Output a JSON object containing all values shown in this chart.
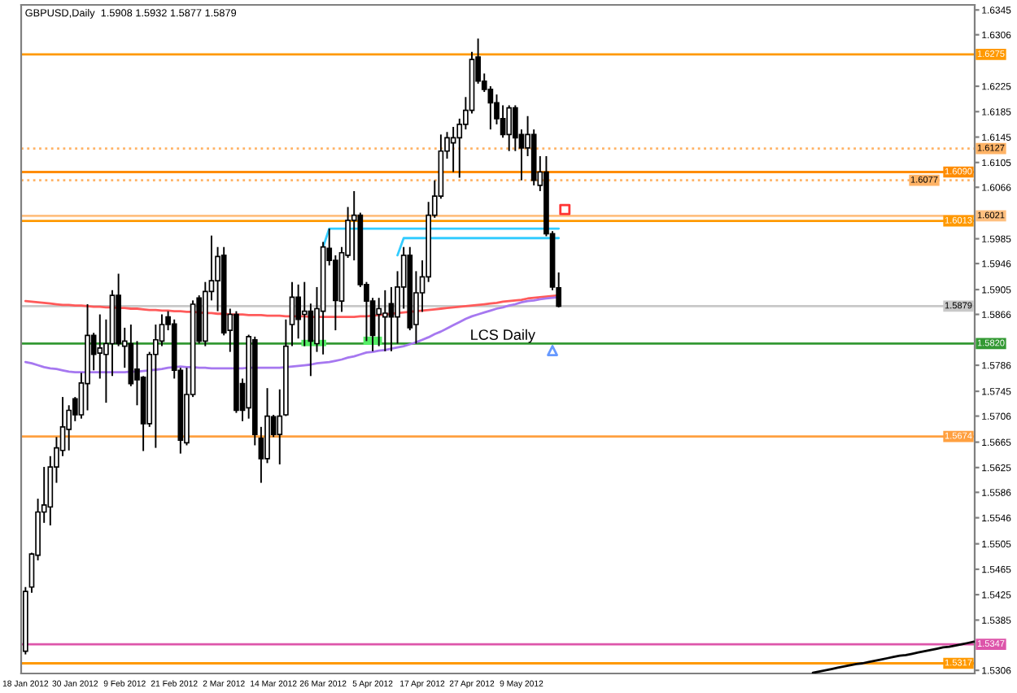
{
  "chart_data": {
    "type": "candlestick",
    "title": "GBPUSD,Daily  1.5908 1.5932 1.5877 1.5879",
    "color": "#000000",
    "categories": [
      "18 Jan 2012",
      null,
      null,
      null,
      null,
      null,
      null,
      null,
      "30 Jan 2012",
      null,
      null,
      null,
      null,
      null,
      null,
      null,
      "9 Feb 2012",
      null,
      null,
      null,
      null,
      null,
      null,
      null,
      "21 Feb 2012",
      null,
      null,
      null,
      null,
      null,
      null,
      null,
      "2 Mar 2012",
      null,
      null,
      null,
      null,
      null,
      null,
      null,
      "14 Mar 2012",
      null,
      null,
      null,
      null,
      null,
      null,
      null,
      "26 Mar 2012",
      null,
      null,
      null,
      null,
      null,
      null,
      null,
      "5 Apr 2012",
      null,
      null,
      null,
      null,
      null,
      null,
      null,
      "17 Apr 2012",
      null,
      null,
      null,
      null,
      null,
      null,
      null,
      "27 Apr 2012",
      null,
      null,
      null,
      null,
      null,
      null,
      null,
      "9 May 2012",
      null,
      null,
      null,
      null,
      null,
      null,
      null,
      null,
      null,
      null,
      null,
      null,
      null,
      null,
      null,
      null,
      null,
      null,
      null,
      null,
      null,
      null,
      null,
      null,
      null,
      null,
      null,
      null,
      null,
      null,
      null,
      null,
      null,
      null,
      null,
      null,
      null,
      null,
      null,
      null,
      null,
      null,
      null,
      null,
      null,
      null,
      null,
      null,
      null,
      null,
      null,
      null,
      null,
      null,
      null,
      null,
      null,
      null,
      null,
      null,
      null,
      null,
      null,
      null,
      null,
      null,
      null,
      null,
      null,
      null,
      null,
      null,
      null
    ],
    "ohlc": [
      [
        1.5336,
        1.5437,
        1.5331,
        1.543
      ],
      [
        1.5437,
        1.5491,
        1.5428,
        1.5489
      ],
      [
        1.5487,
        1.5576,
        1.5479,
        1.5555
      ],
      [
        1.5555,
        1.5626,
        1.5538,
        1.5566
      ],
      [
        1.5563,
        1.5643,
        1.5534,
        1.5626
      ],
      [
        1.5626,
        1.5673,
        1.5601,
        1.5656
      ],
      [
        1.5652,
        1.5736,
        1.5643,
        1.5689
      ],
      [
        1.5685,
        1.5723,
        1.5652,
        1.5715
      ],
      [
        1.5733,
        1.5736,
        1.5698,
        1.5708
      ],
      [
        1.5708,
        1.5774,
        1.5702,
        1.5758
      ],
      [
        1.5757,
        1.5882,
        1.5715,
        1.5833
      ],
      [
        1.5833,
        1.5837,
        1.5778,
        1.5803
      ],
      [
        1.5805,
        1.5866,
        1.5765,
        1.5813
      ],
      [
        1.5803,
        1.5858,
        1.5727,
        1.582
      ],
      [
        1.582,
        1.5904,
        1.5769,
        1.5896
      ],
      [
        1.5896,
        1.593,
        1.5816,
        1.582
      ],
      [
        1.5816,
        1.5845,
        1.5782,
        1.5824
      ],
      [
        1.582,
        1.585,
        1.5753,
        1.5757
      ],
      [
        1.578,
        1.5824,
        1.5723,
        1.5763
      ],
      [
        1.5767,
        1.5769,
        1.5651,
        1.5694
      ],
      [
        1.5694,
        1.5807,
        1.5689,
        1.5803
      ],
      [
        1.5803,
        1.585,
        1.5656,
        1.5826
      ],
      [
        1.5824,
        1.5866,
        1.5816,
        1.585
      ],
      [
        1.5862,
        1.5871,
        1.5841,
        1.585
      ],
      [
        1.5851,
        1.5858,
        1.5765,
        1.5778
      ],
      [
        1.5778,
        1.5782,
        1.5647,
        1.5668
      ],
      [
        1.5664,
        1.5782,
        1.566,
        1.574
      ],
      [
        1.574,
        1.5888,
        1.5736,
        1.5882
      ],
      [
        1.5892,
        1.5896,
        1.582,
        1.5824
      ],
      [
        1.5824,
        1.5917,
        1.5816,
        1.5902
      ],
      [
        1.5902,
        1.599,
        1.5888,
        1.5919
      ],
      [
        1.5919,
        1.5972,
        1.5871,
        1.5957
      ],
      [
        1.5959,
        1.5972,
        1.5833,
        1.5837
      ],
      [
        1.5841,
        1.5875,
        1.5807,
        1.5866
      ],
      [
        1.5866,
        1.5871,
        1.5711,
        1.5715
      ],
      [
        1.5757,
        1.5765,
        1.5698,
        1.5715
      ],
      [
        1.5719,
        1.5834,
        1.5702,
        1.5831
      ],
      [
        1.5826,
        1.5831,
        1.566,
        1.5677
      ],
      [
        1.5671,
        1.5689,
        1.5601,
        1.5639
      ],
      [
        1.5639,
        1.575,
        1.5632,
        1.5706
      ],
      [
        1.5705,
        1.5708,
        1.5673,
        1.5677
      ],
      [
        1.5677,
        1.5748,
        1.563,
        1.5706
      ],
      [
        1.5708,
        1.5858,
        1.5706,
        1.5816
      ],
      [
        1.585,
        1.5917,
        1.5816,
        1.5893
      ],
      [
        1.5893,
        1.5913,
        1.5828,
        1.5858
      ],
      [
        1.5866,
        1.5917,
        1.5816,
        1.5871
      ],
      [
        1.5871,
        1.5883,
        1.5769,
        1.5824
      ],
      [
        1.582,
        1.5909,
        1.5807,
        1.5875
      ],
      [
        1.5871,
        1.598,
        1.5803,
        1.5972
      ],
      [
        1.597,
        1.6001,
        1.5943,
        1.5951
      ],
      [
        1.5951,
        1.5959,
        1.5841,
        1.5888
      ],
      [
        1.5887,
        1.5972,
        1.587,
        1.5963
      ],
      [
        1.5959,
        1.6035,
        1.5955,
        1.6014
      ],
      [
        1.6014,
        1.606,
        1.5951,
        1.6022
      ],
      [
        1.6022,
        1.6026,
        1.5909,
        1.5913
      ],
      [
        1.5913,
        1.5917,
        1.5824,
        1.5887
      ],
      [
        1.5887,
        1.5892,
        1.5808,
        1.5833
      ],
      [
        1.5866,
        1.5892,
        1.5816,
        1.5875
      ],
      [
        1.5862,
        1.5904,
        1.5808,
        1.5868
      ],
      [
        1.5883,
        1.5909,
        1.5808,
        1.5862
      ],
      [
        1.5862,
        1.5934,
        1.582,
        1.5909
      ],
      [
        1.5909,
        1.5972,
        1.5875,
        1.5959
      ],
      [
        1.5959,
        1.5972,
        1.5841,
        1.5845
      ],
      [
        1.585,
        1.5934,
        1.582,
        1.59
      ],
      [
        1.59,
        1.5951,
        1.587,
        1.5925
      ],
      [
        1.5925,
        1.6043,
        1.5917,
        1.6022
      ],
      [
        1.6022,
        1.6077,
        1.6018,
        1.6052
      ],
      [
        1.6052,
        1.6149,
        1.6048,
        1.6123
      ],
      [
        1.6123,
        1.6153,
        1.6111,
        1.6144
      ],
      [
        1.6136,
        1.6161,
        1.609,
        1.6144
      ],
      [
        1.6144,
        1.6174,
        1.6081,
        1.6165
      ],
      [
        1.6165,
        1.6208,
        1.6157,
        1.6187
      ],
      [
        1.6187,
        1.6279,
        1.6182,
        1.6267
      ],
      [
        1.6271,
        1.63,
        1.6229,
        1.6233
      ],
      [
        1.6233,
        1.6245,
        1.6216,
        1.622
      ],
      [
        1.622,
        1.6225,
        1.6157,
        1.6199
      ],
      [
        1.6199,
        1.6212,
        1.6165,
        1.6174
      ],
      [
        1.6174,
        1.6195,
        1.6144,
        1.6149
      ],
      [
        1.6149,
        1.6195,
        1.6123,
        1.6191
      ],
      [
        1.6191,
        1.6195,
        1.6123,
        1.6144
      ],
      [
        1.6149,
        1.6157,
        1.6077,
        1.6128
      ],
      [
        1.6128,
        1.6178,
        1.6115,
        1.6149
      ],
      [
        1.6149,
        1.6157,
        1.6069,
        1.6077
      ],
      [
        1.6069,
        1.6115,
        1.606,
        1.609
      ],
      [
        1.609,
        1.6115,
        1.5989,
        1.5993
      ],
      [
        1.5993,
        1.5997,
        1.5904,
        1.5909
      ],
      [
        1.5908,
        1.5932,
        1.5877,
        1.5879
      ],
      null,
      null,
      null,
      null,
      null,
      null,
      null,
      null,
      null,
      null,
      null,
      null,
      null,
      null,
      null,
      null,
      null,
      null,
      null,
      null,
      null,
      null,
      null,
      null,
      null,
      null,
      null,
      null,
      null,
      null,
      null,
      null,
      null,
      null,
      null,
      null,
      null,
      null,
      null,
      null,
      null,
      null,
      null,
      null,
      null,
      null,
      null,
      null,
      null,
      null,
      null,
      null,
      null,
      null,
      null,
      null,
      null,
      null,
      null,
      null,
      null,
      null,
      null,
      null,
      null,
      null,
      null
    ],
    "ylim": [
      1.5301,
      1.6353
    ],
    "yticks": [
      1.6345,
      1.6306,
      1.6225,
      1.6185,
      1.6145,
      1.6105,
      1.6066,
      1.5985,
      1.5946,
      1.5905,
      1.5866,
      1.5786,
      1.5745,
      1.5706,
      1.5665,
      1.5625,
      1.5586,
      1.5546,
      1.5505,
      1.5465,
      1.5425,
      1.5385,
      1.5306
    ],
    "series": [
      {
        "type": "line",
        "color": "#ff5a5a",
        "values": [
          1.5887,
          1.5886,
          1.5885,
          1.5884,
          1.5883,
          1.5882,
          1.5881,
          1.5881,
          1.588,
          1.588,
          1.5879,
          1.5878,
          1.5878,
          1.5877,
          1.5877,
          1.5876,
          1.5876,
          1.5875,
          1.5875,
          1.5874,
          1.5873,
          1.5873,
          1.5872,
          1.5872,
          1.5871,
          1.5871,
          1.587,
          1.587,
          1.5869,
          1.5868,
          1.5868,
          1.5867,
          1.5867,
          1.5866,
          1.5866,
          1.5866,
          1.5865,
          1.5865,
          1.5865,
          1.5864,
          1.5864,
          1.5864,
          1.5863,
          1.5863,
          1.5863,
          1.5863,
          1.5862,
          1.5862,
          1.5862,
          1.5862,
          1.5862,
          1.5862,
          1.5862,
          1.5862,
          1.5863,
          1.5863,
          1.5864,
          1.5865,
          1.5866,
          1.5867,
          1.5868,
          1.5869,
          1.587,
          1.5871,
          1.5872,
          1.5873,
          1.5874,
          1.5875,
          1.5876,
          1.5877,
          1.5878,
          1.5879,
          1.588,
          1.5881,
          1.5882,
          1.5883,
          1.5884,
          1.5886,
          1.5887,
          1.5888,
          1.5889,
          1.5891,
          1.5892,
          1.5893,
          1.5894,
          1.5895,
          1.5896,
          null,
          null,
          null,
          null,
          null,
          null,
          null,
          null,
          null,
          null,
          null,
          null,
          null,
          null,
          null,
          null,
          null,
          null,
          null,
          null,
          null,
          null,
          null,
          null,
          null,
          null,
          null,
          null,
          null,
          null,
          null,
          null,
          null,
          null,
          null,
          null,
          null,
          null,
          null,
          null,
          null,
          null,
          null,
          null,
          null,
          null,
          null,
          null,
          null,
          null,
          null,
          null,
          null,
          null,
          null,
          null,
          null,
          null,
          null,
          null,
          null,
          null,
          null,
          null,
          null,
          null,
          null
        ]
      },
      {
        "type": "line",
        "color": "#a678f0",
        "values": [
          1.5791,
          1.5789,
          1.5786,
          1.5783,
          1.5781,
          1.578,
          1.5778,
          1.5776,
          1.5775,
          1.5775,
          1.5775,
          1.5775,
          1.5775,
          1.5775,
          1.5775,
          1.5775,
          1.5775,
          1.5776,
          1.5776,
          1.5777,
          1.5778,
          1.5779,
          1.578,
          1.5782,
          1.5783,
          1.5784,
          1.5783,
          1.5783,
          1.5782,
          1.5782,
          1.5781,
          1.5781,
          1.5781,
          1.5781,
          1.5781,
          1.5781,
          1.5782,
          1.5782,
          1.5782,
          1.5782,
          1.5782,
          1.5782,
          1.5783,
          1.5784,
          1.5785,
          1.5786,
          1.5787,
          1.5789,
          1.579,
          1.5791,
          1.5793,
          1.5795,
          1.5798,
          1.58,
          1.5803,
          1.5806,
          1.5807,
          1.5809,
          1.581,
          1.5812,
          1.5814,
          1.5816,
          1.5819,
          1.5822,
          1.5826,
          1.583,
          1.5835,
          1.5839,
          1.5844,
          1.5849,
          1.5854,
          1.5859,
          1.5863,
          1.5866,
          1.5869,
          1.5872,
          1.5875,
          1.5877,
          1.588,
          1.5882,
          1.5885,
          1.5887,
          1.5888,
          1.589,
          1.5891,
          1.5892,
          1.5893,
          null,
          null,
          null,
          null,
          null,
          null,
          null,
          null,
          null,
          null,
          null,
          null,
          null,
          null,
          null,
          null,
          null,
          null,
          null,
          null,
          null,
          null,
          null,
          null,
          null,
          null,
          null,
          null,
          null,
          null,
          null,
          null,
          null,
          null,
          null,
          null,
          null,
          null,
          null,
          null,
          null,
          null,
          null,
          null,
          null,
          null,
          null,
          null,
          null,
          null,
          null,
          null,
          null,
          null,
          null,
          null,
          null,
          null,
          null,
          null,
          null,
          null,
          null,
          null,
          null,
          null,
          null
        ]
      },
      {
        "type": "line",
        "color": "#33ccff",
        "values": [
          null,
          null,
          null,
          null,
          null,
          null,
          null,
          null,
          null,
          null,
          null,
          null,
          null,
          null,
          null,
          null,
          null,
          null,
          null,
          null,
          null,
          null,
          null,
          null,
          null,
          null,
          null,
          null,
          null,
          null,
          null,
          null,
          null,
          null,
          null,
          null,
          null,
          null,
          null,
          null,
          null,
          null,
          null,
          null,
          null,
          null,
          null,
          null,
          1.5972,
          1.6001,
          1.6001,
          1.6001,
          1.6001,
          1.6001,
          1.6001,
          1.6001,
          1.6001,
          1.6001,
          1.6001,
          1.6001,
          1.6001,
          1.6001,
          1.6001,
          1.6001,
          1.6001,
          1.6001,
          1.6001,
          1.6001,
          1.6001,
          1.6001,
          1.6001,
          1.6001,
          1.6001,
          1.6001,
          1.6001,
          1.6001,
          1.6001,
          1.6001,
          1.6001,
          1.6001,
          1.6001,
          1.6001,
          1.6001,
          1.6001,
          1.6001,
          1.6001,
          1.6001,
          null,
          null,
          null,
          null,
          null,
          null,
          null,
          null,
          null,
          null,
          null,
          null,
          null,
          null,
          null,
          null,
          null,
          null,
          null,
          null,
          null,
          null,
          null,
          null,
          null,
          null,
          null,
          null,
          null,
          null,
          null,
          null,
          null,
          null,
          null,
          null,
          null,
          null,
          null,
          null,
          null,
          null,
          null,
          null,
          null,
          null,
          null,
          null,
          null,
          null,
          null,
          null,
          null,
          null,
          null,
          null,
          null,
          null,
          null,
          null,
          null,
          null,
          null,
          null,
          null,
          null,
          null
        ]
      },
      {
        "type": "line",
        "color": "#33ccff",
        "values": [
          null,
          null,
          null,
          null,
          null,
          null,
          null,
          null,
          null,
          null,
          null,
          null,
          null,
          null,
          null,
          null,
          null,
          null,
          null,
          null,
          null,
          null,
          null,
          null,
          null,
          null,
          null,
          null,
          null,
          null,
          null,
          null,
          null,
          null,
          null,
          null,
          null,
          null,
          null,
          null,
          null,
          null,
          null,
          null,
          null,
          null,
          null,
          null,
          null,
          null,
          null,
          null,
          null,
          null,
          null,
          null,
          null,
          null,
          null,
          null,
          1.5959,
          1.5986,
          1.5986,
          1.5986,
          1.5986,
          1.5986,
          1.5986,
          1.5986,
          1.5986,
          1.5986,
          1.5986,
          1.5986,
          1.5986,
          1.5986,
          1.5986,
          1.5986,
          1.5986,
          1.5986,
          1.5986,
          1.5986,
          1.5986,
          1.5986,
          1.5986,
          1.5986,
          1.5986,
          1.5986,
          1.5986,
          null,
          null,
          null,
          null,
          null,
          null,
          null,
          null,
          null,
          null,
          null,
          null,
          null,
          null,
          null,
          null,
          null,
          null,
          null,
          null,
          null,
          null,
          null,
          null,
          null,
          null,
          null,
          null,
          null,
          null,
          null,
          null,
          null,
          null,
          null,
          null,
          null,
          null,
          null,
          null,
          null,
          null,
          null,
          null,
          null,
          null,
          null,
          null,
          null,
          null,
          null,
          null,
          null,
          null,
          null,
          null,
          null,
          null,
          null,
          null,
          null,
          null,
          null,
          null,
          null,
          null,
          null
        ]
      },
      {
        "type": "line",
        "color": "#000000",
        "values": [
          null,
          null,
          null,
          null,
          null,
          null,
          null,
          null,
          null,
          null,
          null,
          null,
          null,
          null,
          null,
          null,
          null,
          null,
          null,
          null,
          null,
          null,
          null,
          null,
          null,
          null,
          null,
          null,
          null,
          null,
          null,
          null,
          null,
          null,
          null,
          null,
          null,
          null,
          null,
          null,
          null,
          null,
          null,
          null,
          null,
          null,
          null,
          null,
          null,
          null,
          null,
          null,
          null,
          null,
          null,
          null,
          null,
          null,
          null,
          null,
          null,
          null,
          null,
          null,
          null,
          null,
          null,
          null,
          null,
          null,
          null,
          null,
          null,
          null,
          null,
          null,
          null,
          null,
          null,
          null,
          null,
          null,
          null,
          null,
          null,
          null,
          null,
          null,
          null,
          null,
          null,
          null,
          null,
          null,
          null,
          null,
          null,
          null,
          null,
          null,
          null,
          null,
          null,
          null,
          null,
          null,
          null,
          null,
          null,
          null,
          null,
          null,
          null,
          null,
          null,
          null,
          null,
          null,
          null,
          null,
          null,
          null,
          null,
          null,
          null,
          null,
          null,
          1.5302,
          1.5304,
          1.5306,
          1.5308,
          1.531,
          1.5312,
          1.5314,
          1.5316,
          1.5317,
          1.5319,
          1.5321,
          1.5323,
          1.5325,
          1.5327,
          1.5329,
          1.533,
          1.5332,
          1.5334,
          1.5336,
          1.5338,
          1.534,
          1.5342,
          1.5343,
          1.5345,
          1.5347,
          1.5349,
          1.5351
        ]
      },
      {
        "type": "scatter",
        "color": "#6699ff",
        "marker": "triangle",
        "values": [
          null,
          null,
          null,
          null,
          null,
          null,
          null,
          null,
          null,
          null,
          null,
          null,
          null,
          null,
          null,
          null,
          null,
          null,
          null,
          null,
          null,
          null,
          null,
          null,
          null,
          null,
          null,
          null,
          null,
          null,
          null,
          null,
          null,
          null,
          null,
          null,
          null,
          null,
          null,
          null,
          null,
          null,
          null,
          null,
          null,
          null,
          null,
          null,
          null,
          null,
          null,
          null,
          null,
          null,
          null,
          null,
          null,
          null,
          null,
          null,
          null,
          null,
          null,
          null,
          null,
          null,
          null,
          null,
          null,
          null,
          null,
          null,
          null,
          null,
          null,
          null,
          null,
          null,
          null,
          null,
          null,
          null,
          null,
          null,
          null,
          1.5809,
          null,
          null,
          null,
          null,
          null,
          null,
          null,
          null,
          null,
          null,
          null,
          null,
          null,
          null,
          null,
          null,
          null,
          null,
          null,
          null,
          null,
          null,
          null,
          null,
          null,
          null,
          null,
          null,
          null,
          null,
          null,
          null,
          null,
          null,
          null,
          null,
          null,
          null,
          null,
          null,
          null,
          null,
          null,
          null,
          null,
          null,
          null,
          null,
          null,
          null,
          null,
          null,
          null,
          null,
          null,
          null,
          null,
          null,
          null,
          null,
          null,
          null,
          null,
          null,
          null,
          null,
          null,
          null
        ]
      },
      {
        "type": "scatter",
        "color": "#ff3333",
        "marker": "square",
        "values": [
          null,
          null,
          null,
          null,
          null,
          null,
          null,
          null,
          null,
          null,
          null,
          null,
          null,
          null,
          null,
          null,
          null,
          null,
          null,
          null,
          null,
          null,
          null,
          null,
          null,
          null,
          null,
          null,
          null,
          null,
          null,
          null,
          null,
          null,
          null,
          null,
          null,
          null,
          null,
          null,
          null,
          null,
          null,
          null,
          null,
          null,
          null,
          null,
          null,
          null,
          null,
          null,
          null,
          null,
          null,
          null,
          null,
          null,
          null,
          null,
          null,
          null,
          null,
          null,
          null,
          null,
          null,
          null,
          null,
          null,
          null,
          null,
          null,
          null,
          null,
          null,
          null,
          null,
          null,
          null,
          null,
          null,
          null,
          null,
          null,
          null,
          null,
          1.6031,
          null,
          null,
          null,
          null,
          null,
          null,
          null,
          null,
          null,
          null,
          null,
          null,
          null,
          null,
          null,
          null,
          null,
          null,
          null,
          null,
          null,
          null,
          null,
          null,
          null,
          null,
          null,
          null,
          null,
          null,
          null,
          null,
          null,
          null,
          null,
          null,
          null,
          null,
          null,
          null,
          null,
          null,
          null,
          null,
          null,
          null,
          null,
          null,
          null,
          null,
          null,
          null,
          null,
          null,
          null,
          null,
          null,
          null,
          null,
          null,
          null,
          null,
          null,
          null,
          null,
          null
        ]
      }
    ],
    "ref_lines": [
      {
        "axis": "y",
        "value": 1.6275,
        "label": "1.6275",
        "color": "#ff9900"
      },
      {
        "axis": "y",
        "value": 1.6127,
        "label": "1.6127",
        "color": "#ffb366",
        "line_style": "dotted"
      },
      {
        "axis": "y",
        "value": 1.609,
        "label": "1.6090",
        "color": "#ff8c00"
      },
      {
        "axis": "y",
        "value": 1.6077,
        "label": "1.6077",
        "color": "#ffb366",
        "line_style": "dotted"
      },
      {
        "axis": "y",
        "value": 1.6021,
        "label": "1.6021",
        "color": "#ffc080"
      },
      {
        "axis": "y",
        "value": 1.6013,
        "label": "1.6013",
        "color": "#ff9900"
      },
      {
        "axis": "y",
        "value": 1.5879,
        "label": "1.5879",
        "color": "#c8c8c8"
      },
      {
        "axis": "y",
        "value": 1.582,
        "label": "1.5820",
        "color": "#339933"
      },
      {
        "axis": "y",
        "value": 1.5674,
        "label": "1.5674",
        "color": "#ffa040"
      },
      {
        "axis": "y",
        "value": 1.5347,
        "label": "1.5347",
        "color": "#dd55aa"
      },
      {
        "axis": "y",
        "value": 1.5317,
        "label": "1.5317",
        "color": "#ff9900"
      }
    ],
    "annotations": [
      {
        "text": "LCS Daily",
        "y": 1.5832
      }
    ]
  }
}
